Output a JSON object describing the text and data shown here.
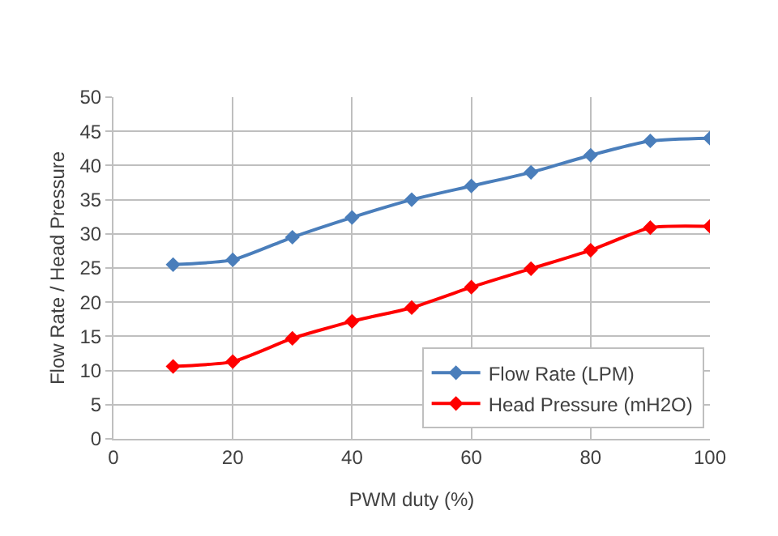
{
  "chart_data": {
    "type": "line",
    "xlabel": "PWM duty (%)",
    "ylabel": "Flow Rate / Head Pressure",
    "x": [
      10,
      20,
      30,
      40,
      50,
      60,
      70,
      80,
      90,
      100
    ],
    "series": [
      {
        "name": "Flow Rate (LPM)",
        "color": "#4a7ebb",
        "values": [
          25.5,
          26.2,
          29.5,
          32.4,
          35.0,
          37.0,
          39.0,
          41.5,
          43.6,
          44.0
        ]
      },
      {
        "name": "Head Pressure (mH2O)",
        "color": "#ff0000",
        "values": [
          10.6,
          11.3,
          14.7,
          17.2,
          19.2,
          22.2,
          24.9,
          27.6,
          30.9,
          31.1
        ]
      }
    ],
    "xlim": [
      0,
      100
    ],
    "xticks": [
      0,
      20,
      40,
      60,
      80,
      100
    ],
    "ylim": [
      0,
      50
    ],
    "yticks": [
      0,
      5,
      10,
      15,
      20,
      25,
      30,
      35,
      40,
      45,
      50
    ],
    "grid": true,
    "legend": "bottom right",
    "marker": "diamond",
    "line_style": "solid"
  }
}
